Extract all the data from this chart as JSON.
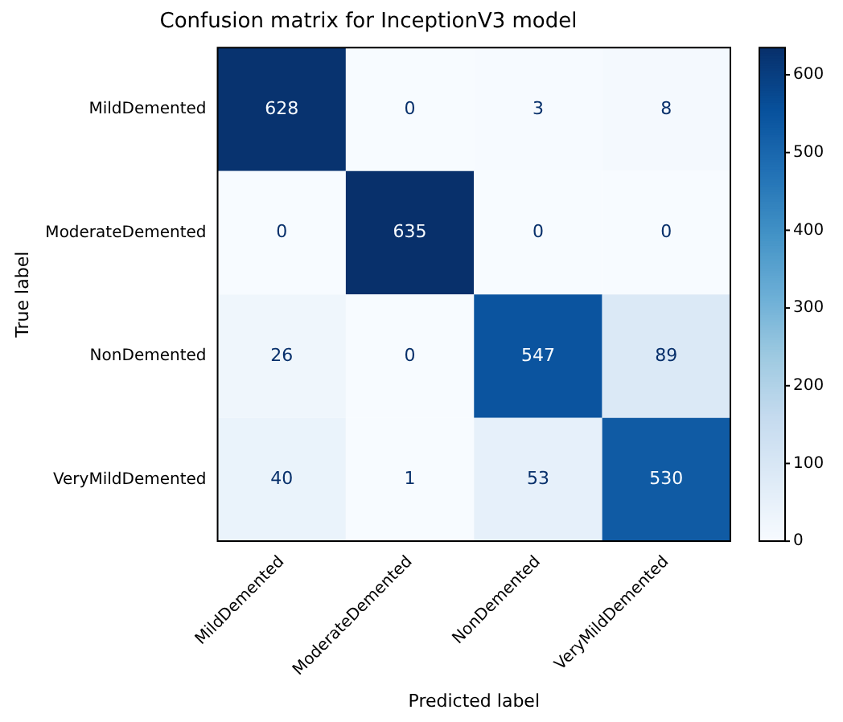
{
  "chart_data": {
    "type": "heatmap",
    "title": "Confusion matrix for InceptionV3 model",
    "xlabel": "Predicted label",
    "ylabel": "True label",
    "categories": [
      "MildDemented",
      "ModerateDemented",
      "NonDemented",
      "VeryMildDemented"
    ],
    "y_categories": [
      "MildDemented",
      "ModerateDemented",
      "NonDemented",
      "VeryMildDemented"
    ],
    "cells": [
      [
        628,
        0,
        3,
        8
      ],
      [
        0,
        635,
        0,
        0
      ],
      [
        26,
        0,
        547,
        89
      ],
      [
        40,
        1,
        53,
        530
      ]
    ],
    "clim": [
      0,
      635
    ],
    "cticks": [
      0,
      100,
      200,
      300,
      400,
      500,
      600
    ],
    "data_labels": true,
    "grid": false,
    "legend": false
  }
}
